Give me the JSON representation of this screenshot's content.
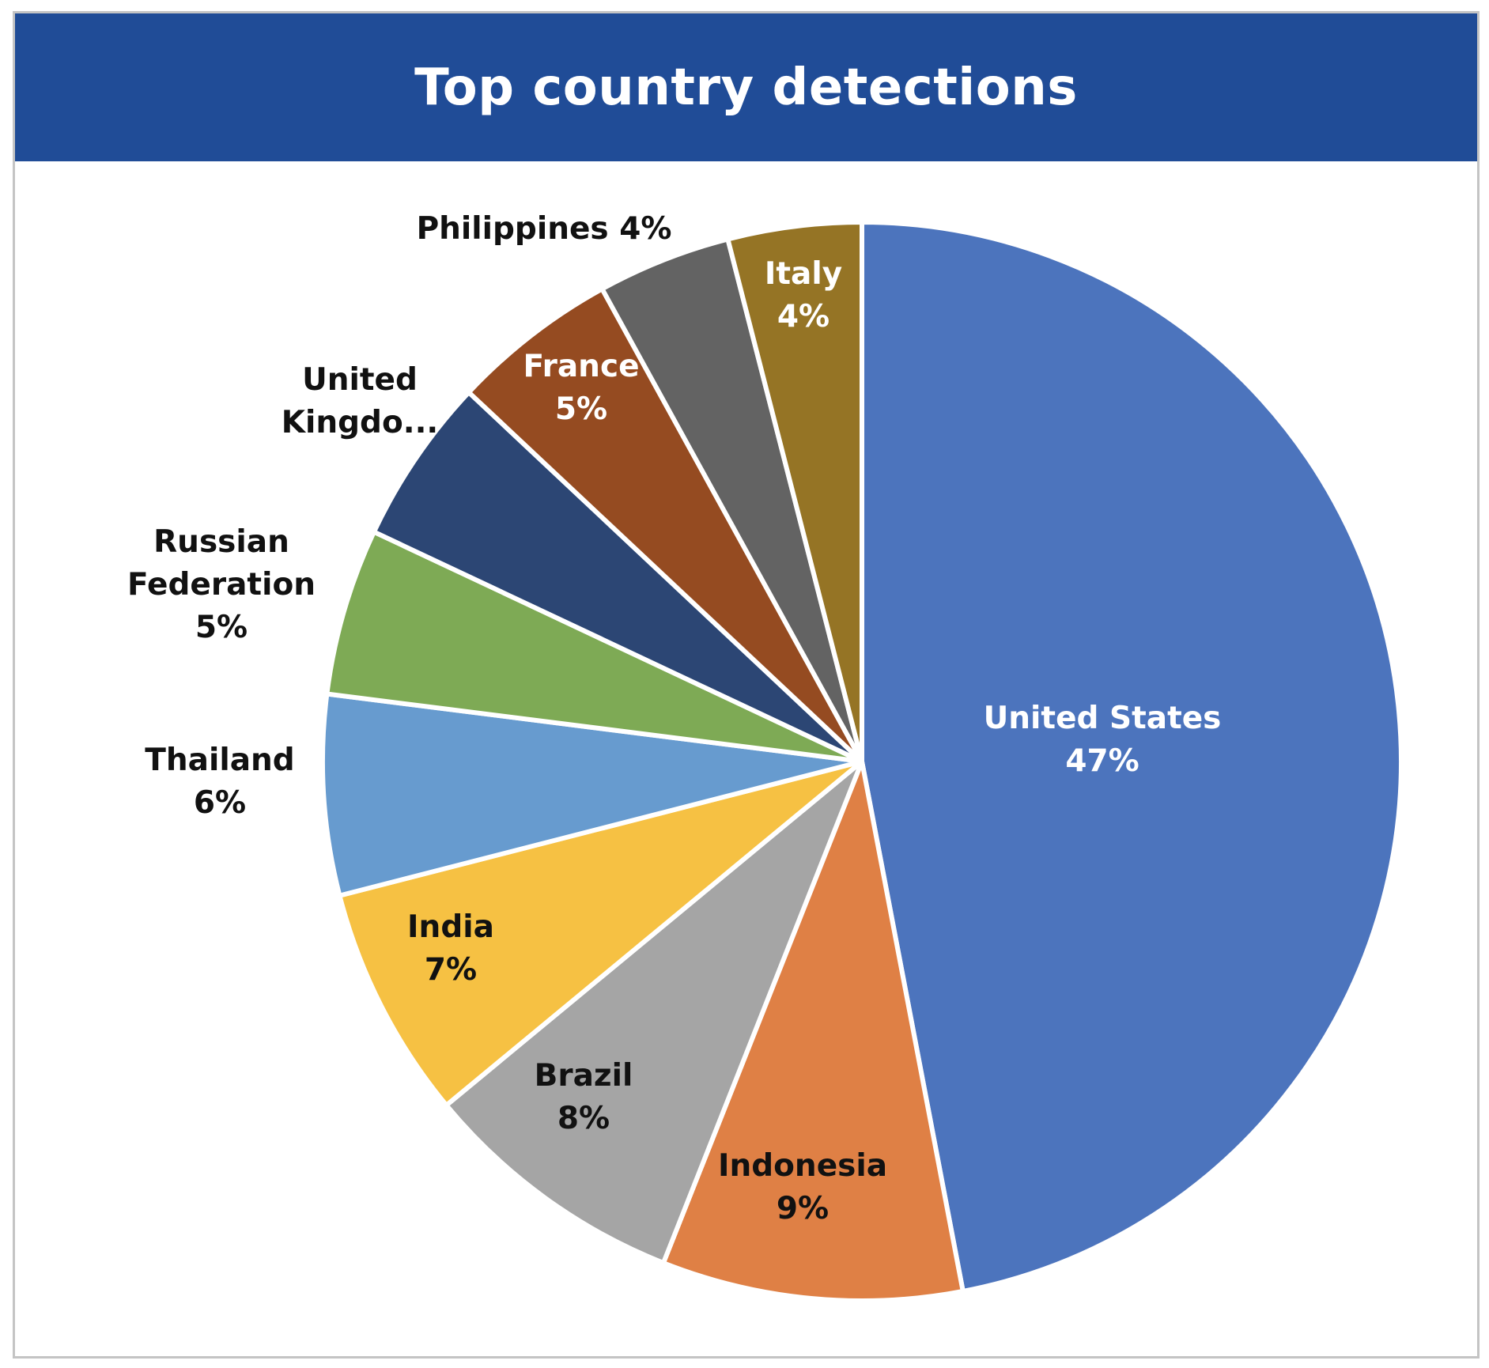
{
  "header": {
    "title": "Top country detections"
  },
  "chart_data": {
    "type": "pie",
    "title": "Top country detections",
    "unit": "%",
    "start": "12 o'clock, clockwise",
    "slices": [
      {
        "name": "United States",
        "value": 47,
        "color": "#4c74bd",
        "label_lines": [
          "United States",
          "47%"
        ],
        "label_color": "#ffffff"
      },
      {
        "name": "Indonesia",
        "value": 9,
        "color": "#df8045",
        "label_lines": [
          "Indonesia",
          "9%"
        ],
        "label_color": "#111111"
      },
      {
        "name": "Brazil",
        "value": 8,
        "color": "#a5a5a5",
        "label_lines": [
          "Brazil",
          "8%"
        ],
        "label_color": "#111111"
      },
      {
        "name": "India",
        "value": 7,
        "color": "#f6c143",
        "label_lines": [
          "India",
          "7%"
        ],
        "label_color": "#111111"
      },
      {
        "name": "Thailand",
        "value": 6,
        "color": "#679bcf",
        "label_lines": [
          "Thailand",
          "6%"
        ],
        "label_color": "#111111"
      },
      {
        "name": "Russian Federation",
        "value": 5,
        "color": "#7eaa55",
        "label_lines": [
          "Russian",
          "Federation",
          "5%"
        ],
        "label_color": "#111111"
      },
      {
        "name": "United Kingdo...",
        "value": 5,
        "color": "#2c4674",
        "label_lines": [
          "United",
          "Kingdo..."
        ],
        "label_color": "#111111"
      },
      {
        "name": "France",
        "value": 5,
        "color": "#954b21",
        "label_lines": [
          "France",
          "5%"
        ],
        "label_color": "#ffffff"
      },
      {
        "name": "Philippines",
        "value": 4,
        "color": "#636363",
        "label_lines": [
          "Philippines 4%"
        ],
        "label_color": "#111111"
      },
      {
        "name": "Italy",
        "value": 4,
        "color": "#957425",
        "label_lines": [
          "Italy",
          "4%"
        ],
        "label_color": "#ffffff"
      }
    ]
  }
}
